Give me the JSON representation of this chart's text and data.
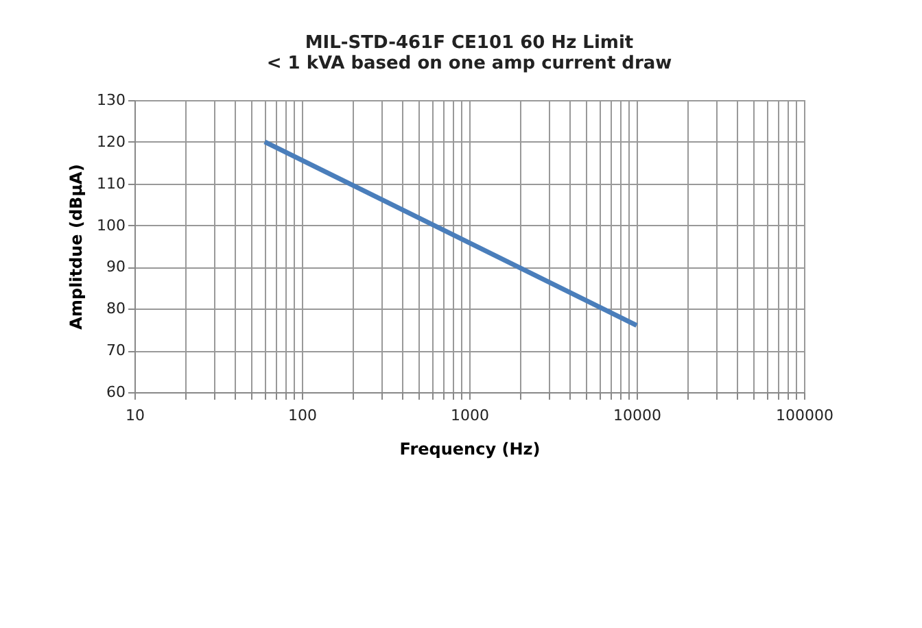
{
  "chart_data": {
    "type": "line",
    "title": [
      "MIL-STD-461F CE101 60 Hz Limit",
      "< 1 kVA based on one amp current draw"
    ],
    "xlabel": "Frequency (Hz)",
    "ylabel": "Amplitdue (dBµA)",
    "x": [
      60,
      10000
    ],
    "series": [
      {
        "color": "#4a7ebb",
        "values": [
          120,
          76
        ]
      }
    ],
    "log": "x",
    "xlim": [
      10,
      100000
    ],
    "xticks": [
      10,
      100,
      1000,
      10000,
      100000
    ],
    "ylim": [
      60,
      130
    ],
    "yticks": [
      60,
      70,
      80,
      90,
      100,
      110,
      120,
      130
    ],
    "grid": true,
    "legend": false,
    "marker": "none",
    "line_style": "solid"
  }
}
